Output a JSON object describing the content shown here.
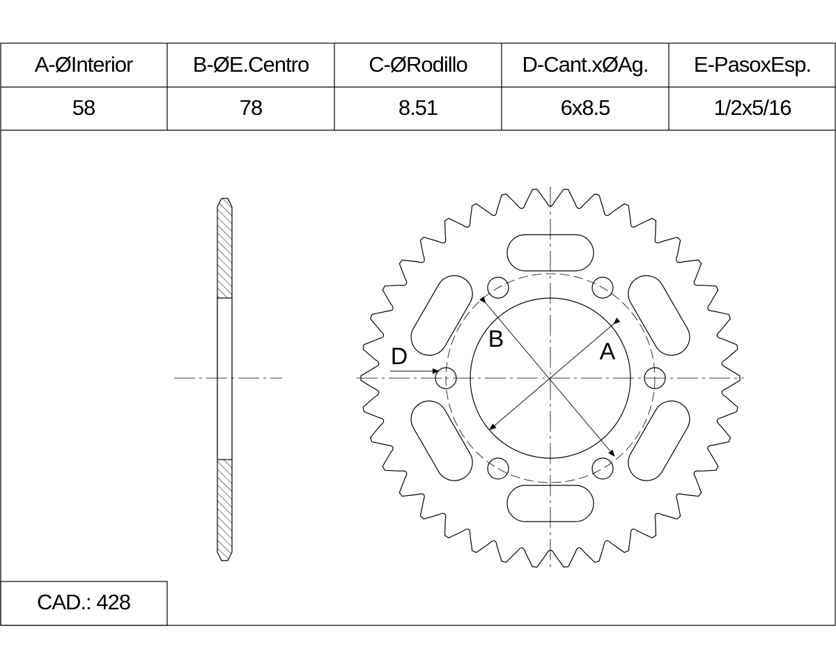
{
  "table": {
    "headers": [
      "A-ØInterior",
      "B-ØE.Centro",
      "C-ØRodillo",
      "D-Cant.xØAg.",
      "E-PasoxEsp."
    ],
    "rows": [
      [
        "58",
        "78",
        "8.51",
        "6x8.5",
        "1/2x5/16"
      ]
    ]
  },
  "labels": {
    "a": "A",
    "b": "B",
    "d": "D"
  },
  "footer": "CAD.: 428"
}
